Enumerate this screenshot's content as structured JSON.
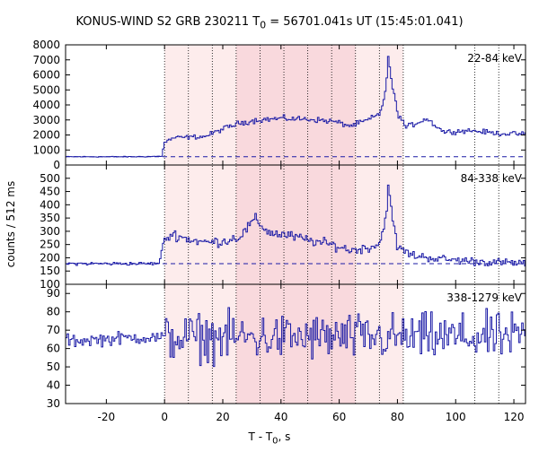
{
  "chart_data": {
    "type": "line",
    "title": "KONUS-WIND S2 GRB 230211 T0 = 56701.041s UT (15:45:01.041)",
    "title_parts": {
      "pre": "KONUS-WIND S2 GRB 230211 T",
      "sub": "0",
      "post": " = 56701.041s UT (15:45:01.041)"
    },
    "xlabel_parts": {
      "pre": "T - T",
      "sub": "0",
      "post": ", s"
    },
    "ylabel": "counts / 512 ms",
    "xlim": [
      -34,
      124
    ],
    "xticks": [
      -20,
      0,
      20,
      40,
      60,
      80,
      100,
      120
    ],
    "dotted_lines": [
      0,
      8.2,
      16.4,
      24.6,
      32.8,
      41.0,
      49.2,
      57.4,
      65.6,
      73.8,
      82.0,
      106.6,
      114.8
    ],
    "shaded_regions": [
      {
        "start": 0,
        "end": 82,
        "color": "#fdecec"
      },
      {
        "start": 24.6,
        "end": 65.6,
        "color": "#f9d9dd"
      }
    ],
    "line_color": "#1a1aa6",
    "panels": [
      {
        "name": "22-84 keV",
        "ylim": [
          0,
          8000
        ],
        "yticks": [
          0,
          1000,
          2000,
          3000,
          4000,
          5000,
          6000,
          7000,
          8000
        ],
        "background": 550,
        "profile": [
          [
            -34,
            550
          ],
          [
            -10,
            550
          ],
          [
            -1,
            580
          ],
          [
            0,
            1500
          ],
          [
            3,
            1800
          ],
          [
            8,
            1850
          ],
          [
            14,
            1900
          ],
          [
            20,
            2400
          ],
          [
            26,
            2800
          ],
          [
            32,
            3000
          ],
          [
            40,
            3100
          ],
          [
            50,
            3050
          ],
          [
            58,
            2900
          ],
          [
            64,
            2600
          ],
          [
            70,
            3000
          ],
          [
            74,
            3400
          ],
          [
            76,
            5000
          ],
          [
            77,
            7300
          ],
          [
            78,
            5500
          ],
          [
            80,
            3500
          ],
          [
            83,
            2500
          ],
          [
            90,
            3100
          ],
          [
            96,
            2200
          ],
          [
            105,
            2300
          ],
          [
            115,
            2100
          ],
          [
            124,
            2050
          ]
        ],
        "noise": 110
      },
      {
        "name": "84-338 keV",
        "ylim": [
          100,
          550
        ],
        "yticks": [
          100,
          150,
          200,
          250,
          300,
          350,
          400,
          450,
          500
        ],
        "background": 178,
        "profile": [
          [
            -34,
            178
          ],
          [
            -2,
            178
          ],
          [
            0,
            270
          ],
          [
            3,
            290
          ],
          [
            8,
            270
          ],
          [
            14,
            258
          ],
          [
            20,
            262
          ],
          [
            26,
            280
          ],
          [
            31,
            345
          ],
          [
            36,
            295
          ],
          [
            42,
            285
          ],
          [
            50,
            265
          ],
          [
            58,
            248
          ],
          [
            64,
            228
          ],
          [
            70,
            238
          ],
          [
            74,
            255
          ],
          [
            76,
            350
          ],
          [
            77,
            500
          ],
          [
            78,
            360
          ],
          [
            80,
            240
          ],
          [
            85,
            210
          ],
          [
            95,
            195
          ],
          [
            105,
            188
          ],
          [
            115,
            182
          ],
          [
            124,
            180
          ]
        ],
        "noise": 11
      },
      {
        "name": "338-1279 keV",
        "ylim": [
          30,
          95
        ],
        "yticks": [
          30,
          40,
          50,
          60,
          70,
          80,
          90
        ],
        "background": 66,
        "profile": [
          [
            -34,
            64
          ],
          [
            -10,
            66
          ],
          [
            0,
            66
          ],
          [
            124,
            66
          ]
        ],
        "noise_pre": 2.5,
        "noise": 9
      }
    ]
  }
}
